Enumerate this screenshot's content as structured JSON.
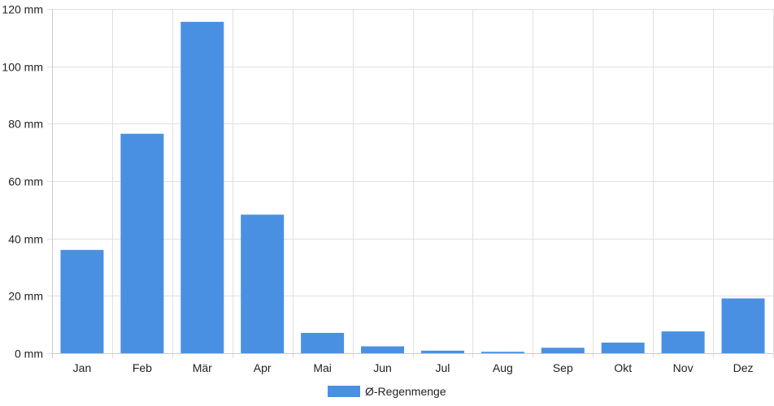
{
  "chart_data": {
    "type": "bar",
    "categories": [
      "Jan",
      "Feb",
      "Mär",
      "Apr",
      "Mai",
      "Jun",
      "Jul",
      "Aug",
      "Sep",
      "Okt",
      "Nov",
      "Dez"
    ],
    "series": [
      {
        "name": "Ø-Regenmenge",
        "values": [
          36,
          76.5,
          115.5,
          48.3,
          7.1,
          2.4,
          0.9,
          0.5,
          1.9,
          3.7,
          7.6,
          19.1
        ]
      }
    ],
    "yticks": [
      0,
      20,
      40,
      60,
      80,
      100,
      120
    ],
    "y_unit": "mm",
    "ylim": [
      0,
      120
    ],
    "grid": true,
    "legend_position": "bottom",
    "colors": {
      "bar": "#4a90e2",
      "grid": "#e0e0e0",
      "axis": "#cccccc",
      "text": "#222222"
    }
  }
}
